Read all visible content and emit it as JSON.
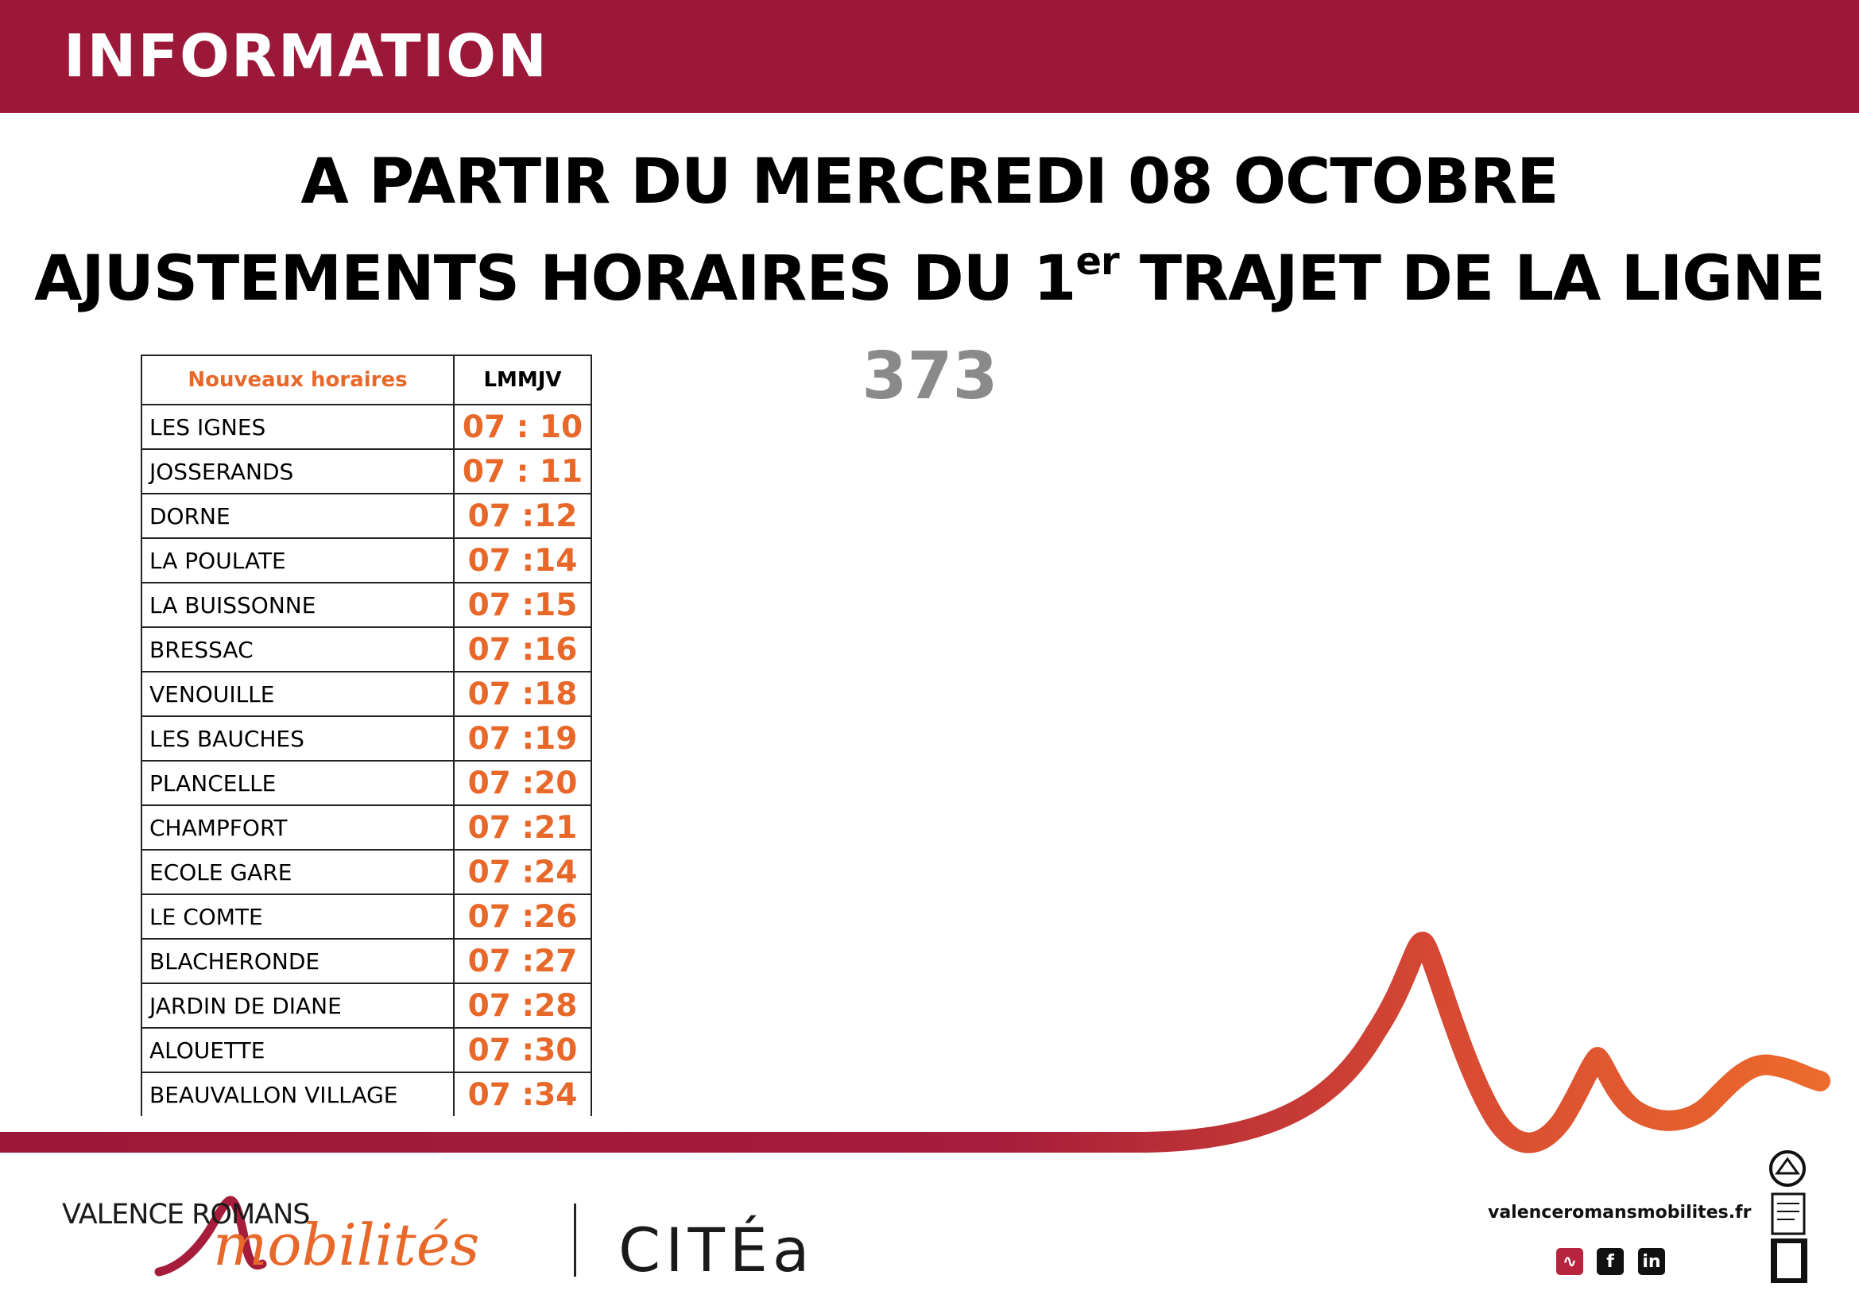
{
  "banner": {
    "label": "INFORMATION"
  },
  "headline": {
    "line1": "A PARTIR DU MERCREDI 08 OCTOBRE",
    "line2_pre": "AJUSTEMENTS HORAIRES DU 1",
    "line2_sup": "er",
    "line2_post": " TRAJET DE LA LIGNE",
    "line_number": "373"
  },
  "timetable": {
    "header_stop": "Nouveaux horaires",
    "header_days": "LMMJV",
    "rows": [
      {
        "stop": "LES IGNES",
        "time": "07 : 10"
      },
      {
        "stop": "JOSSERANDS",
        "time": "07 : 11"
      },
      {
        "stop": "DORNE",
        "time": "07 :12"
      },
      {
        "stop": "LA POULATE",
        "time": "07 :14"
      },
      {
        "stop": "LA BUISSONNE",
        "time": "07 :15"
      },
      {
        "stop": "BRESSAC",
        "time": "07 :16"
      },
      {
        "stop": "VENOUILLE",
        "time": "07 :18"
      },
      {
        "stop": "LES BAUCHES",
        "time": "07 :19"
      },
      {
        "stop": "PLANCELLE",
        "time": "07 :20"
      },
      {
        "stop": "CHAMPFORT",
        "time": "07 :21"
      },
      {
        "stop": "ECOLE GARE",
        "time": "07 :24"
      },
      {
        "stop": "LE COMTE",
        "time": "07 :26"
      },
      {
        "stop": "BLACHERONDE",
        "time": "07 :27"
      },
      {
        "stop": "JARDIN DE DIANE",
        "time": "07 :28"
      },
      {
        "stop": "ALOUETTE",
        "time": "07 :30"
      },
      {
        "stop": "BEAUVALLON VILLAGE",
        "time": "07 :34"
      }
    ]
  },
  "footer": {
    "brand_valence_romans": "VALENCE ROMANS",
    "brand_mobilites": "mobilités",
    "brand_citea": "CITÉa",
    "website": "valenceromansmobilites.fr",
    "social_icons": [
      "mobilites-app-icon",
      "facebook-icon",
      "linkedin-icon"
    ],
    "recycle_icon": "recycle-bin-icon"
  },
  "colors": {
    "banner": "#9b1838",
    "accent_orange": "#e8682a",
    "line_number_gray": "#8a8a8a"
  }
}
